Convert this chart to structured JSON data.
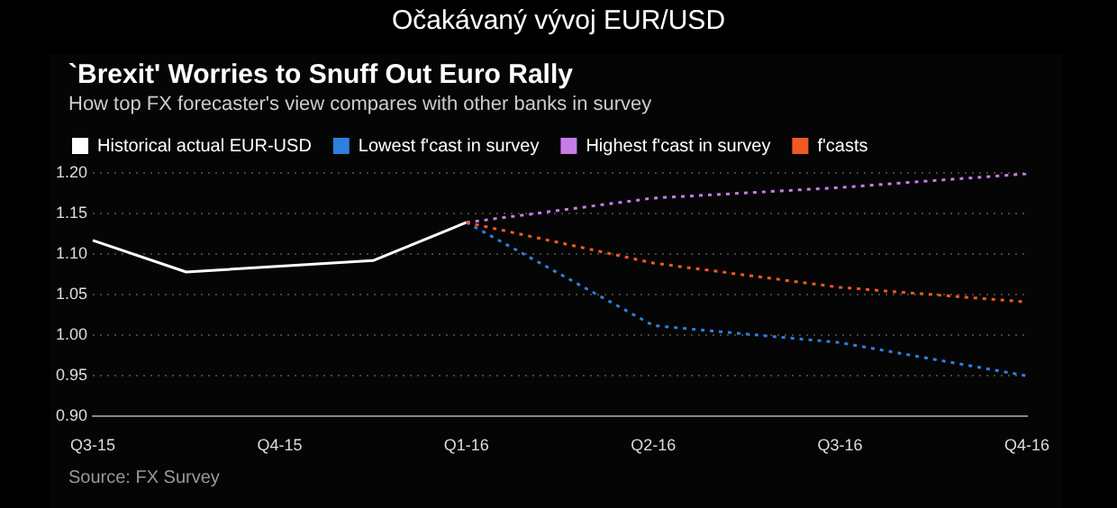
{
  "chart_data": {
    "type": "line",
    "title": "Očakávaný vývoj EUR/USD",
    "subtitle": "`Brexit' Worries to Snuff Out Euro Rally",
    "annotations": [
      "How top FX forecaster's view compares with other banks in survey",
      "Source: FX Survey"
    ],
    "categories": [
      "Q3-15",
      null,
      "Q4-15",
      null,
      "Q1-16",
      null,
      "Q2-16",
      null,
      "Q3-16",
      null,
      "Q4-16"
    ],
    "ylim": [
      0.9,
      1.2
    ],
    "yticks": [
      {
        "value": 0.9,
        "label": "0.90"
      },
      0.95,
      {
        "value": 1.0,
        "label": "1.00"
      },
      1.05,
      {
        "value": 1.1,
        "label": "1.10"
      },
      1.15,
      {
        "value": 1.2,
        "label": "1.20"
      }
    ],
    "grid": "y",
    "legend": "top",
    "marker": "none",
    "series": [
      {
        "name": "Historical actual EUR-USD",
        "color": "#ffffff",
        "line_style": "solid",
        "values": [
          1.117,
          1.078,
          null,
          1.092,
          1.139,
          null,
          null,
          null,
          null,
          null,
          null
        ]
      },
      {
        "name": "Lowest f'cast in survey",
        "color": "#2f7fe0",
        "line_style": "dotted",
        "values": [
          null,
          null,
          null,
          null,
          1.139,
          null,
          1.012,
          null,
          0.991,
          null,
          0.95
        ]
      },
      {
        "name": "Highest f'cast in survey",
        "color": "#c77ce8",
        "line_style": "dotted",
        "values": [
          null,
          null,
          null,
          null,
          1.139,
          null,
          1.169,
          null,
          1.182,
          null,
          1.199
        ]
      },
      {
        "name": "f'casts",
        "color": "#f05a22",
        "line_style": "dotted",
        "values": [
          null,
          null,
          null,
          null,
          1.139,
          null,
          1.089,
          null,
          1.059,
          null,
          1.041
        ]
      }
    ]
  }
}
